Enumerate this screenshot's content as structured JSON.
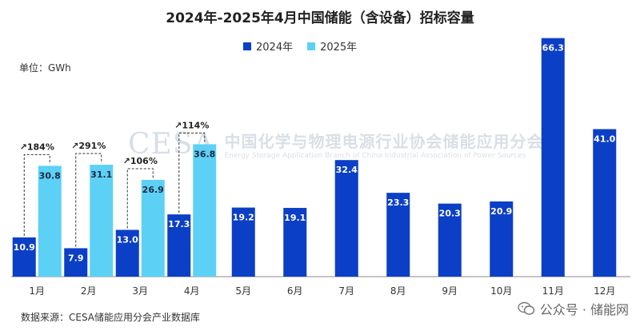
{
  "title": "2024年-2025年4月中国储能（含设备）招标容量",
  "unit_label": "单位：GWh",
  "source_label": "数据来源：CESA储能应用分会产业数据库",
  "footer": {
    "text": "公众号 · 储能网",
    "icon": "wechat-icon"
  },
  "watermark": {
    "logo": "CESA",
    "cn": "中国化学与物理电源行业协会储能应用分会",
    "en": "Energy Storage Application Branch of China Industrial Association of Power Sources"
  },
  "colors": {
    "s2024": "#0b3fc6",
    "s2025": "#5dd1f5",
    "axis": "#888888"
  },
  "chart_data": {
    "type": "bar",
    "title": "2024年-2025年4月中国储能（含设备）招标容量",
    "ylabel": "单位：GWh",
    "ylim": [
      0,
      70
    ],
    "grid": false,
    "legend_position": "top",
    "categories": [
      "1月",
      "2月",
      "3月",
      "4月",
      "5月",
      "6月",
      "7月",
      "8月",
      "9月",
      "10月",
      "11月",
      "12月"
    ],
    "series": [
      {
        "name": "2024年",
        "values": [
          10.9,
          7.9,
          13.0,
          17.3,
          19.2,
          19.1,
          32.4,
          23.3,
          20.3,
          20.9,
          66.3,
          41.0
        ],
        "labels": [
          "10.9",
          "7.9",
          "13.0",
          "17.3",
          "19.2",
          "19.1",
          "32.4",
          "23.3",
          "20.3",
          "20.9",
          "66.3",
          "41.0"
        ]
      },
      {
        "name": "2025年",
        "values": [
          30.8,
          31.1,
          26.9,
          36.8,
          null,
          null,
          null,
          null,
          null,
          null,
          null,
          null
        ],
        "labels": [
          "30.8",
          "31.1",
          "26.9",
          "36.8",
          "",
          "",
          "",
          "",
          "",
          "",
          "",
          ""
        ]
      }
    ],
    "annotations": [
      {
        "category": "1月",
        "text": "↗184%"
      },
      {
        "category": "2月",
        "text": "↗291%"
      },
      {
        "category": "3月",
        "text": "↗106%"
      },
      {
        "category": "4月",
        "text": "↗114%"
      }
    ]
  }
}
